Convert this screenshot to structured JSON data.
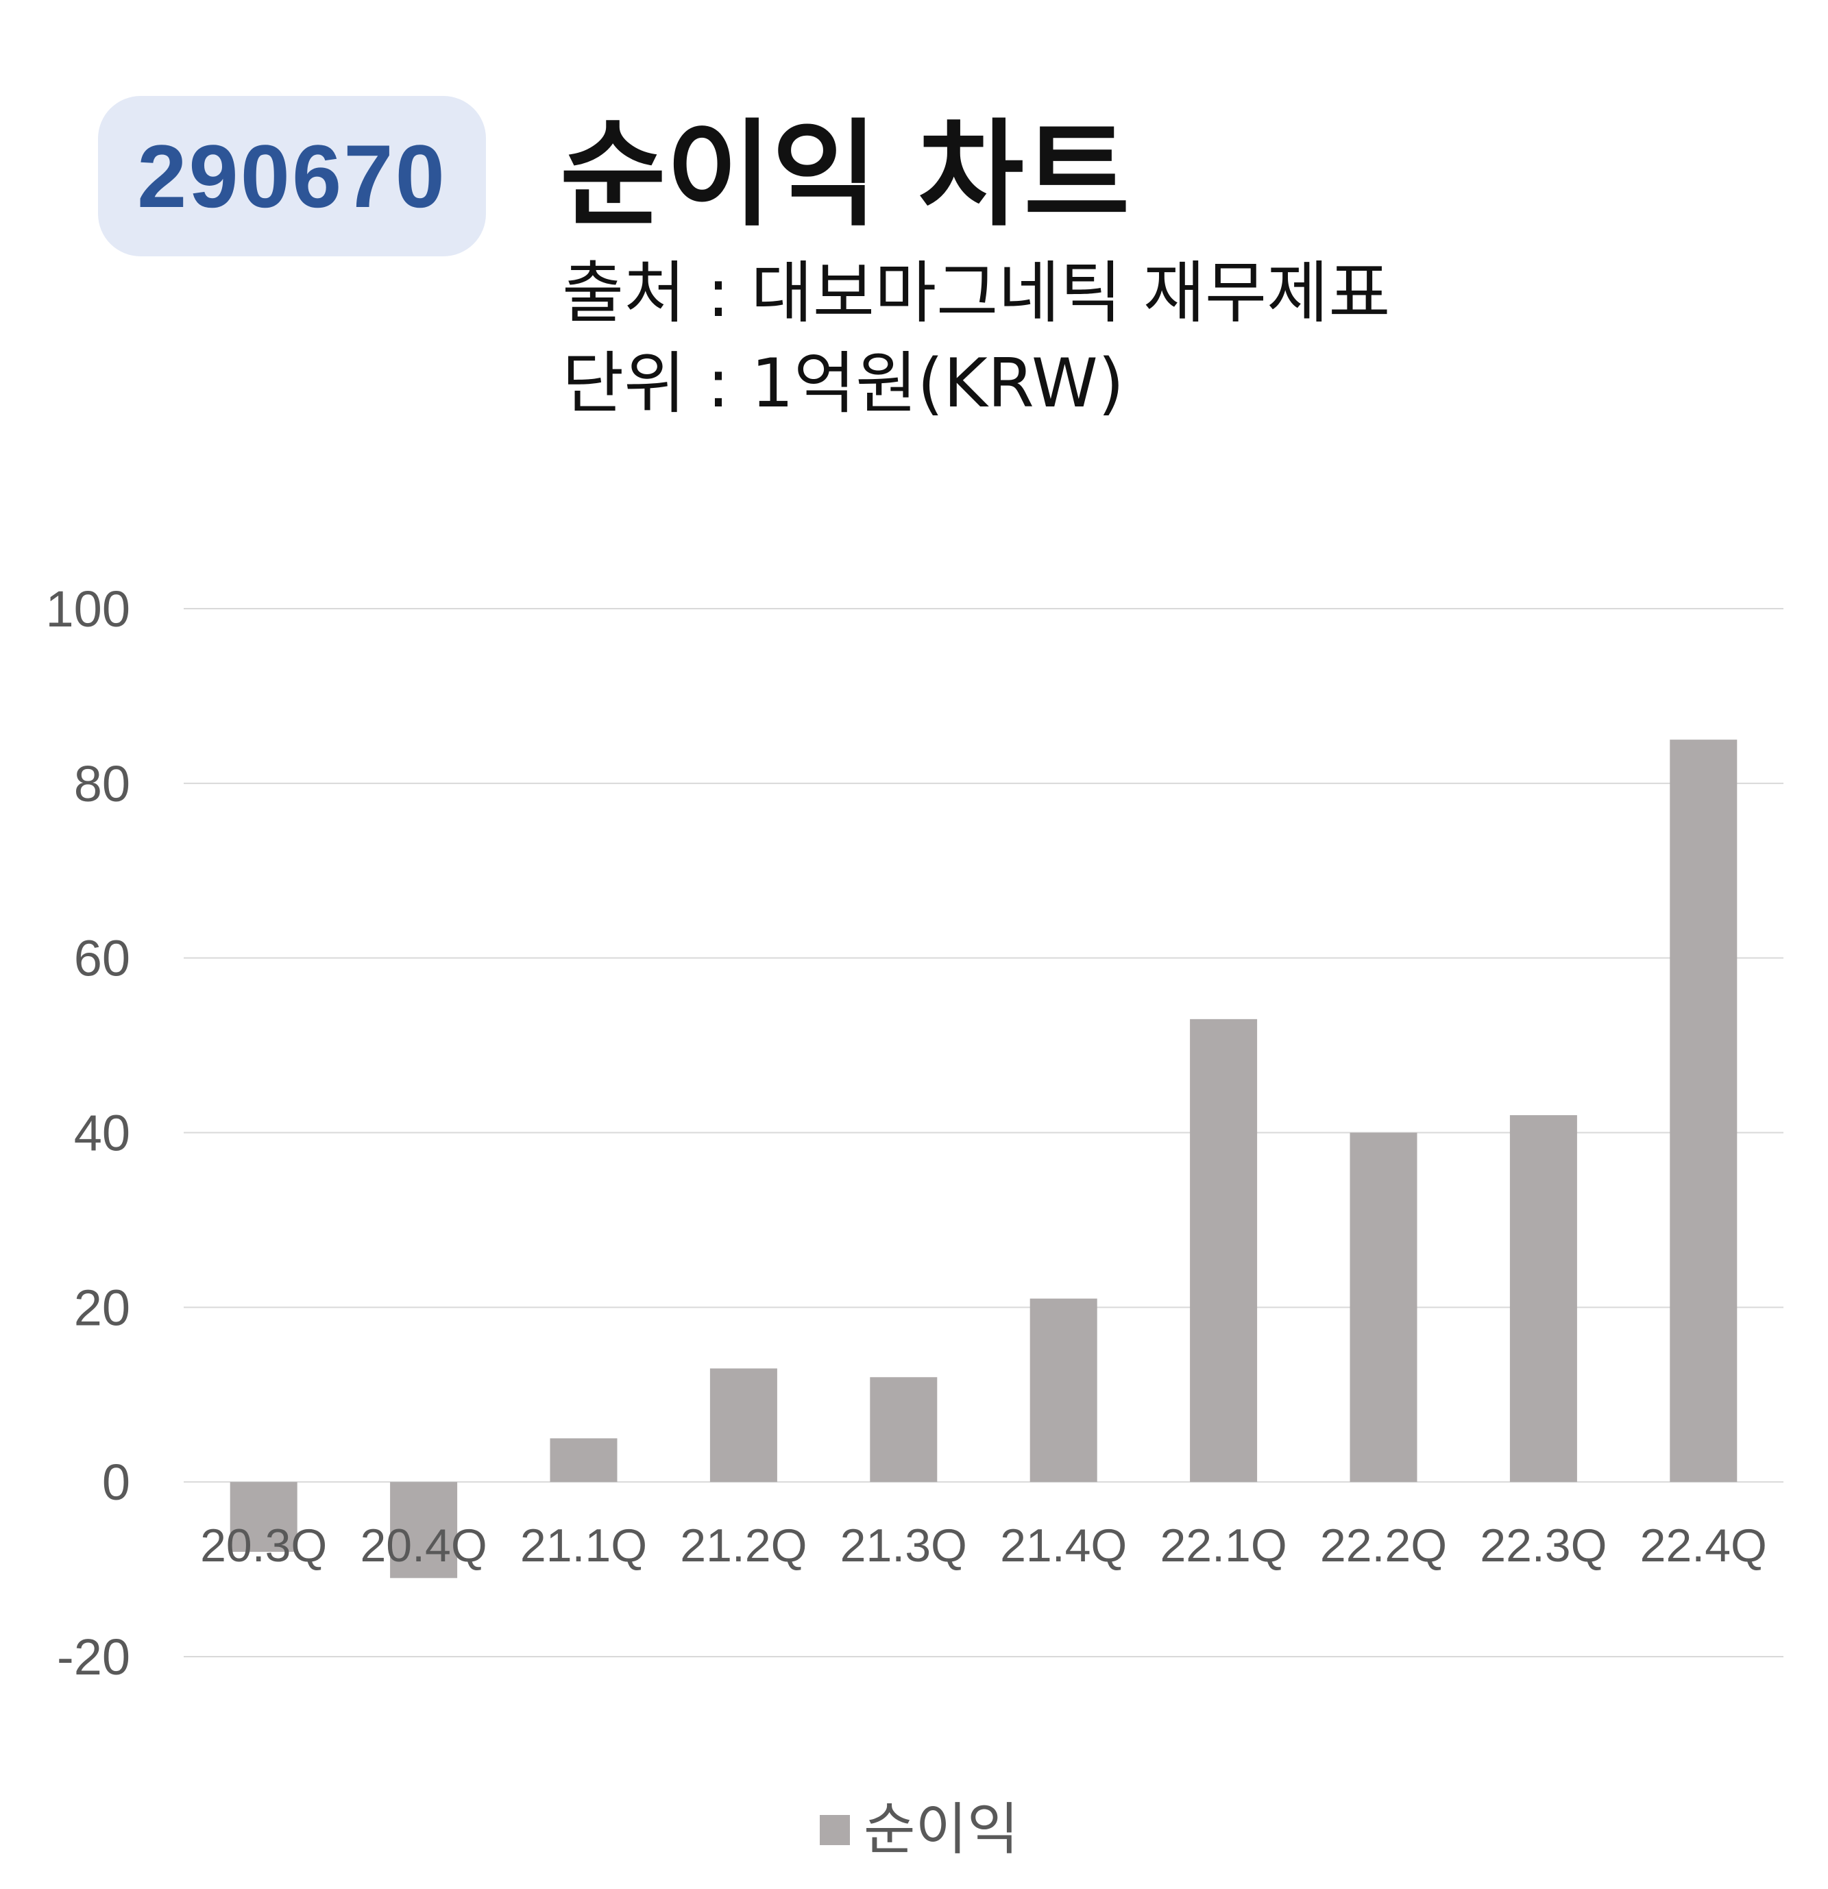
{
  "badge": {
    "code": "290670"
  },
  "header": {
    "title": "순이익 차트",
    "source": "출처 : 대보마그네틱 재무제표",
    "unit": "단위 : 1억원(KRW)"
  },
  "chart_data": {
    "type": "bar",
    "categories": [
      "20.3Q",
      "20.4Q",
      "21.1Q",
      "21.2Q",
      "21.3Q",
      "21.4Q",
      "22.1Q",
      "22.2Q",
      "22.3Q",
      "22.4Q"
    ],
    "series": [
      {
        "name": "순이익",
        "values": [
          -8,
          -11,
          5,
          13,
          12,
          21,
          53,
          40,
          42,
          85
        ],
        "color": "#aeaaaa"
      }
    ],
    "yticks": [
      100,
      80,
      60,
      40,
      20,
      0,
      -20
    ],
    "ylim": [
      -20,
      100
    ],
    "grid": true,
    "legend_position": "bottom"
  }
}
